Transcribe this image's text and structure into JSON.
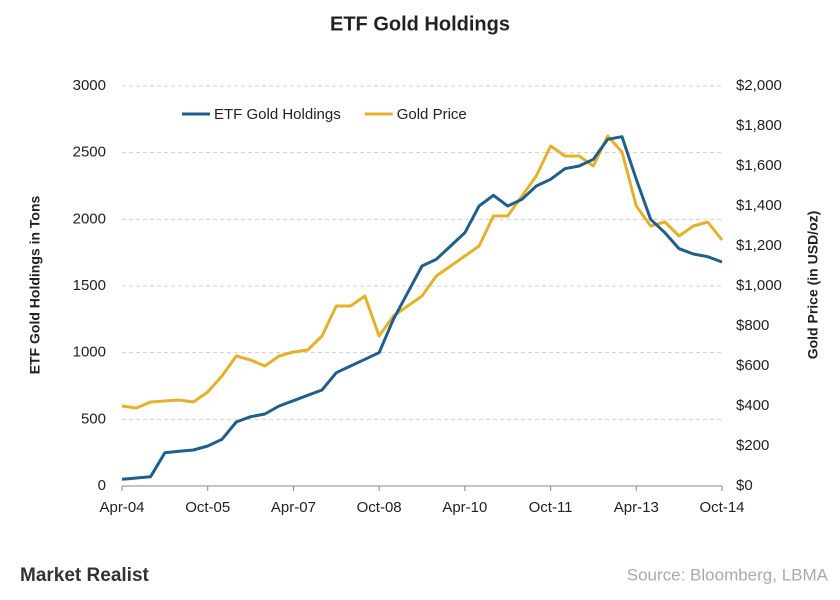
{
  "chart_data": {
    "type": "line",
    "title": "ETF Gold Holdings",
    "y_label": "ETF Gold Holdings in Tons",
    "y2_label": "Gold Price (in USD/oz)",
    "categories": [
      "Apr-04",
      null,
      null,
      null,
      null,
      null,
      "Oct-05",
      null,
      null,
      null,
      null,
      null,
      "Apr-07",
      null,
      null,
      null,
      null,
      null,
      "Oct-08",
      null,
      null,
      null,
      null,
      null,
      "Apr-10",
      null,
      null,
      null,
      null,
      null,
      "Oct-11",
      null,
      null,
      null,
      null,
      null,
      "Apr-13",
      null,
      null,
      null,
      null,
      null,
      "Oct-14"
    ],
    "series": [
      {
        "name": "ETF Gold Holdings",
        "color": "#1f5f8b",
        "axis": "y",
        "values": [
          50,
          60,
          70,
          250,
          260,
          270,
          300,
          350,
          480,
          520,
          540,
          600,
          640,
          680,
          720,
          850,
          900,
          950,
          1000,
          1250,
          1450,
          1650,
          1700,
          1800,
          1900,
          2100,
          2180,
          2100,
          2150,
          2250,
          2300,
          2380,
          2400,
          2450,
          2600,
          2620,
          2300,
          2000,
          1900,
          1780,
          1740,
          1720,
          1680
        ]
      },
      {
        "name": "Gold Price",
        "color": "#e3b12b",
        "axis": "y2",
        "values": [
          400,
          390,
          420,
          425,
          430,
          420,
          470,
          550,
          650,
          630,
          600,
          650,
          670,
          680,
          750,
          900,
          900,
          950,
          750,
          850,
          900,
          950,
          1050,
          1100,
          1150,
          1200,
          1350,
          1350,
          1450,
          1550,
          1700,
          1650,
          1650,
          1600,
          1750,
          1670,
          1400,
          1300,
          1320,
          1250,
          1300,
          1320,
          1230
        ]
      }
    ],
    "ylim": [
      0,
      3000
    ],
    "yticks": [
      0,
      500,
      1000,
      1500,
      2000,
      2500,
      3000
    ],
    "y2lim": [
      0,
      2000
    ],
    "y2ticks": [
      {
        "value": 0,
        "label": "$0"
      },
      {
        "value": 200,
        "label": "$200"
      },
      {
        "value": 400,
        "label": "$400"
      },
      {
        "value": 600,
        "label": "$600"
      },
      {
        "value": 800,
        "label": "$800"
      },
      {
        "value": 1000,
        "label": "$1,000"
      },
      {
        "value": 1200,
        "label": "$1,200"
      },
      {
        "value": 1400,
        "label": "$1,400"
      },
      {
        "value": 1600,
        "label": "$1,600"
      },
      {
        "value": 1800,
        "label": "$1,800"
      },
      {
        "value": 2000,
        "label": "$2,000"
      }
    ],
    "grid": true,
    "legend": "top"
  },
  "footer": {
    "logo": "Market Realist",
    "source": "Source: Bloomberg, LBMA"
  }
}
